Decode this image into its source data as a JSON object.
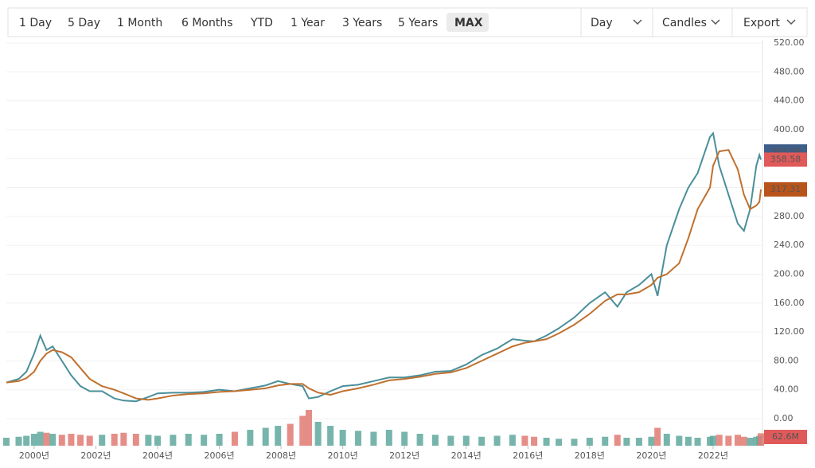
{
  "toolbar": {
    "ranges": [
      "1 Day",
      "5 Day",
      "1 Month",
      "6 Months",
      "YTD",
      "1 Year",
      "3 Years",
      "5 Years",
      "MAX"
    ],
    "active": 8,
    "dropdowns": [
      "Day",
      "Candles",
      "Export"
    ]
  },
  "chart_data": {
    "type": "line",
    "x": [
      1999.1,
      1999.5,
      1999.75,
      2000.0,
      2000.2,
      2000.4,
      2000.6,
      2000.9,
      2001.2,
      2001.5,
      2001.8,
      2002.2,
      2002.6,
      2002.9,
      2003.3,
      2003.7,
      2004.0,
      2004.5,
      2005.0,
      2005.5,
      2006.0,
      2006.5,
      2007.0,
      2007.5,
      2007.9,
      2008.3,
      2008.7,
      2008.9,
      2009.2,
      2009.6,
      2010.0,
      2010.5,
      2011.0,
      2011.5,
      2012.0,
      2012.5,
      2013.0,
      2013.5,
      2014.0,
      2014.5,
      2015.0,
      2015.5,
      2015.9,
      2016.2,
      2016.6,
      2017.0,
      2017.5,
      2018.0,
      2018.5,
      2018.9,
      2019.2,
      2019.6,
      2020.0,
      2020.2,
      2020.5,
      2020.9,
      2021.2,
      2021.5,
      2021.9,
      2022.0,
      2022.2,
      2022.5,
      2022.8,
      2023.0,
      2023.2,
      2023.4,
      2023.5,
      2023.55
    ],
    "series": [
      {
        "color": "#4a8f9a",
        "label_color": "#e05a5a",
        "values": [
          50,
          55,
          65,
          90,
          115,
          95,
          100,
          80,
          60,
          45,
          38,
          38,
          28,
          25,
          24,
          30,
          35,
          36,
          36,
          37,
          40,
          38,
          42,
          46,
          52,
          48,
          45,
          28,
          30,
          38,
          45,
          47,
          52,
          57,
          57,
          60,
          65,
          66,
          75,
          88,
          97,
          110,
          108,
          107,
          115,
          125,
          140,
          160,
          175,
          155,
          175,
          185,
          200,
          170,
          240,
          290,
          320,
          340,
          390,
          395,
          350,
          310,
          270,
          260,
          290,
          350,
          365,
          358.58
        ]
      },
      {
        "color": "#c0702f",
        "label_color": "#b8541a",
        "values": [
          50,
          52,
          56,
          65,
          80,
          90,
          95,
          92,
          85,
          70,
          55,
          45,
          40,
          35,
          28,
          26,
          28,
          32,
          34,
          35,
          37,
          38,
          40,
          42,
          46,
          48,
          48,
          42,
          36,
          33,
          38,
          42,
          47,
          53,
          55,
          58,
          62,
          64,
          70,
          80,
          90,
          100,
          105,
          107,
          110,
          118,
          130,
          145,
          163,
          172,
          172,
          175,
          185,
          195,
          200,
          215,
          250,
          290,
          320,
          350,
          370,
          372,
          345,
          310,
          290,
          295,
          300,
          317.31
        ]
      }
    ],
    "reference_price": 369.89,
    "reference_color": "#3f5f8a",
    "volume": {
      "up_color": "#5fa89e",
      "down_color": "#e07a72",
      "label_color": "#e05a5a",
      "last_label": "62.6M",
      "values": [
        40,
        45,
        50,
        60,
        70,
        65,
        60,
        55,
        60,
        55,
        50,
        55,
        60,
        65,
        60,
        55,
        50,
        55,
        60,
        55,
        60,
        70,
        80,
        90,
        100,
        110,
        150,
        180,
        120,
        100,
        80,
        75,
        70,
        80,
        70,
        60,
        55,
        50,
        50,
        45,
        50,
        55,
        50,
        45,
        40,
        35,
        35,
        40,
        45,
        55,
        40,
        40,
        45,
        90,
        60,
        50,
        45,
        40,
        45,
        50,
        55,
        50,
        55,
        45,
        40,
        45,
        50,
        62.6
      ]
    },
    "y2lim": [
      0,
      400
    ],
    "xlim": [
      1999.1,
      2023.6
    ],
    "xticks": [
      {
        "value": 2000,
        "label": "2000년"
      },
      {
        "value": 2002,
        "label": "2002년"
      },
      {
        "value": 2004,
        "label": "2004년"
      },
      {
        "value": 2006,
        "label": "2006년"
      },
      {
        "value": 2008,
        "label": "2008년"
      },
      {
        "value": 2010,
        "label": "2010년"
      },
      {
        "value": 2012,
        "label": "2012년"
      },
      {
        "value": 2014,
        "label": "2014년"
      },
      {
        "value": 2016,
        "label": "2016년"
      },
      {
        "value": 2018,
        "label": "2018년"
      },
      {
        "value": 2020,
        "label": "2020년"
      },
      {
        "value": 2022,
        "label": "2022년"
      }
    ],
    "ylim": [
      0,
      520
    ],
    "yticks": [
      {
        "value": 0,
        "label": "0.00"
      },
      {
        "value": 40,
        "label": "40.00"
      },
      {
        "value": 80,
        "label": "80.00"
      },
      {
        "value": 120,
        "label": "120.00"
      },
      {
        "value": 160,
        "label": "160.00"
      },
      {
        "value": 200,
        "label": "200.00"
      },
      {
        "value": 240,
        "label": "240.00"
      },
      {
        "value": 280,
        "label": "280.00"
      },
      {
        "value": 320,
        "label": "320.00"
      },
      {
        "value": 360,
        "label": "360.00"
      },
      {
        "value": 400,
        "label": "400.00"
      },
      {
        "value": 440,
        "label": "440.00"
      },
      {
        "value": 480,
        "label": "480.00"
      },
      {
        "value": 520,
        "label": "520.00"
      }
    ],
    "grid": true
  }
}
